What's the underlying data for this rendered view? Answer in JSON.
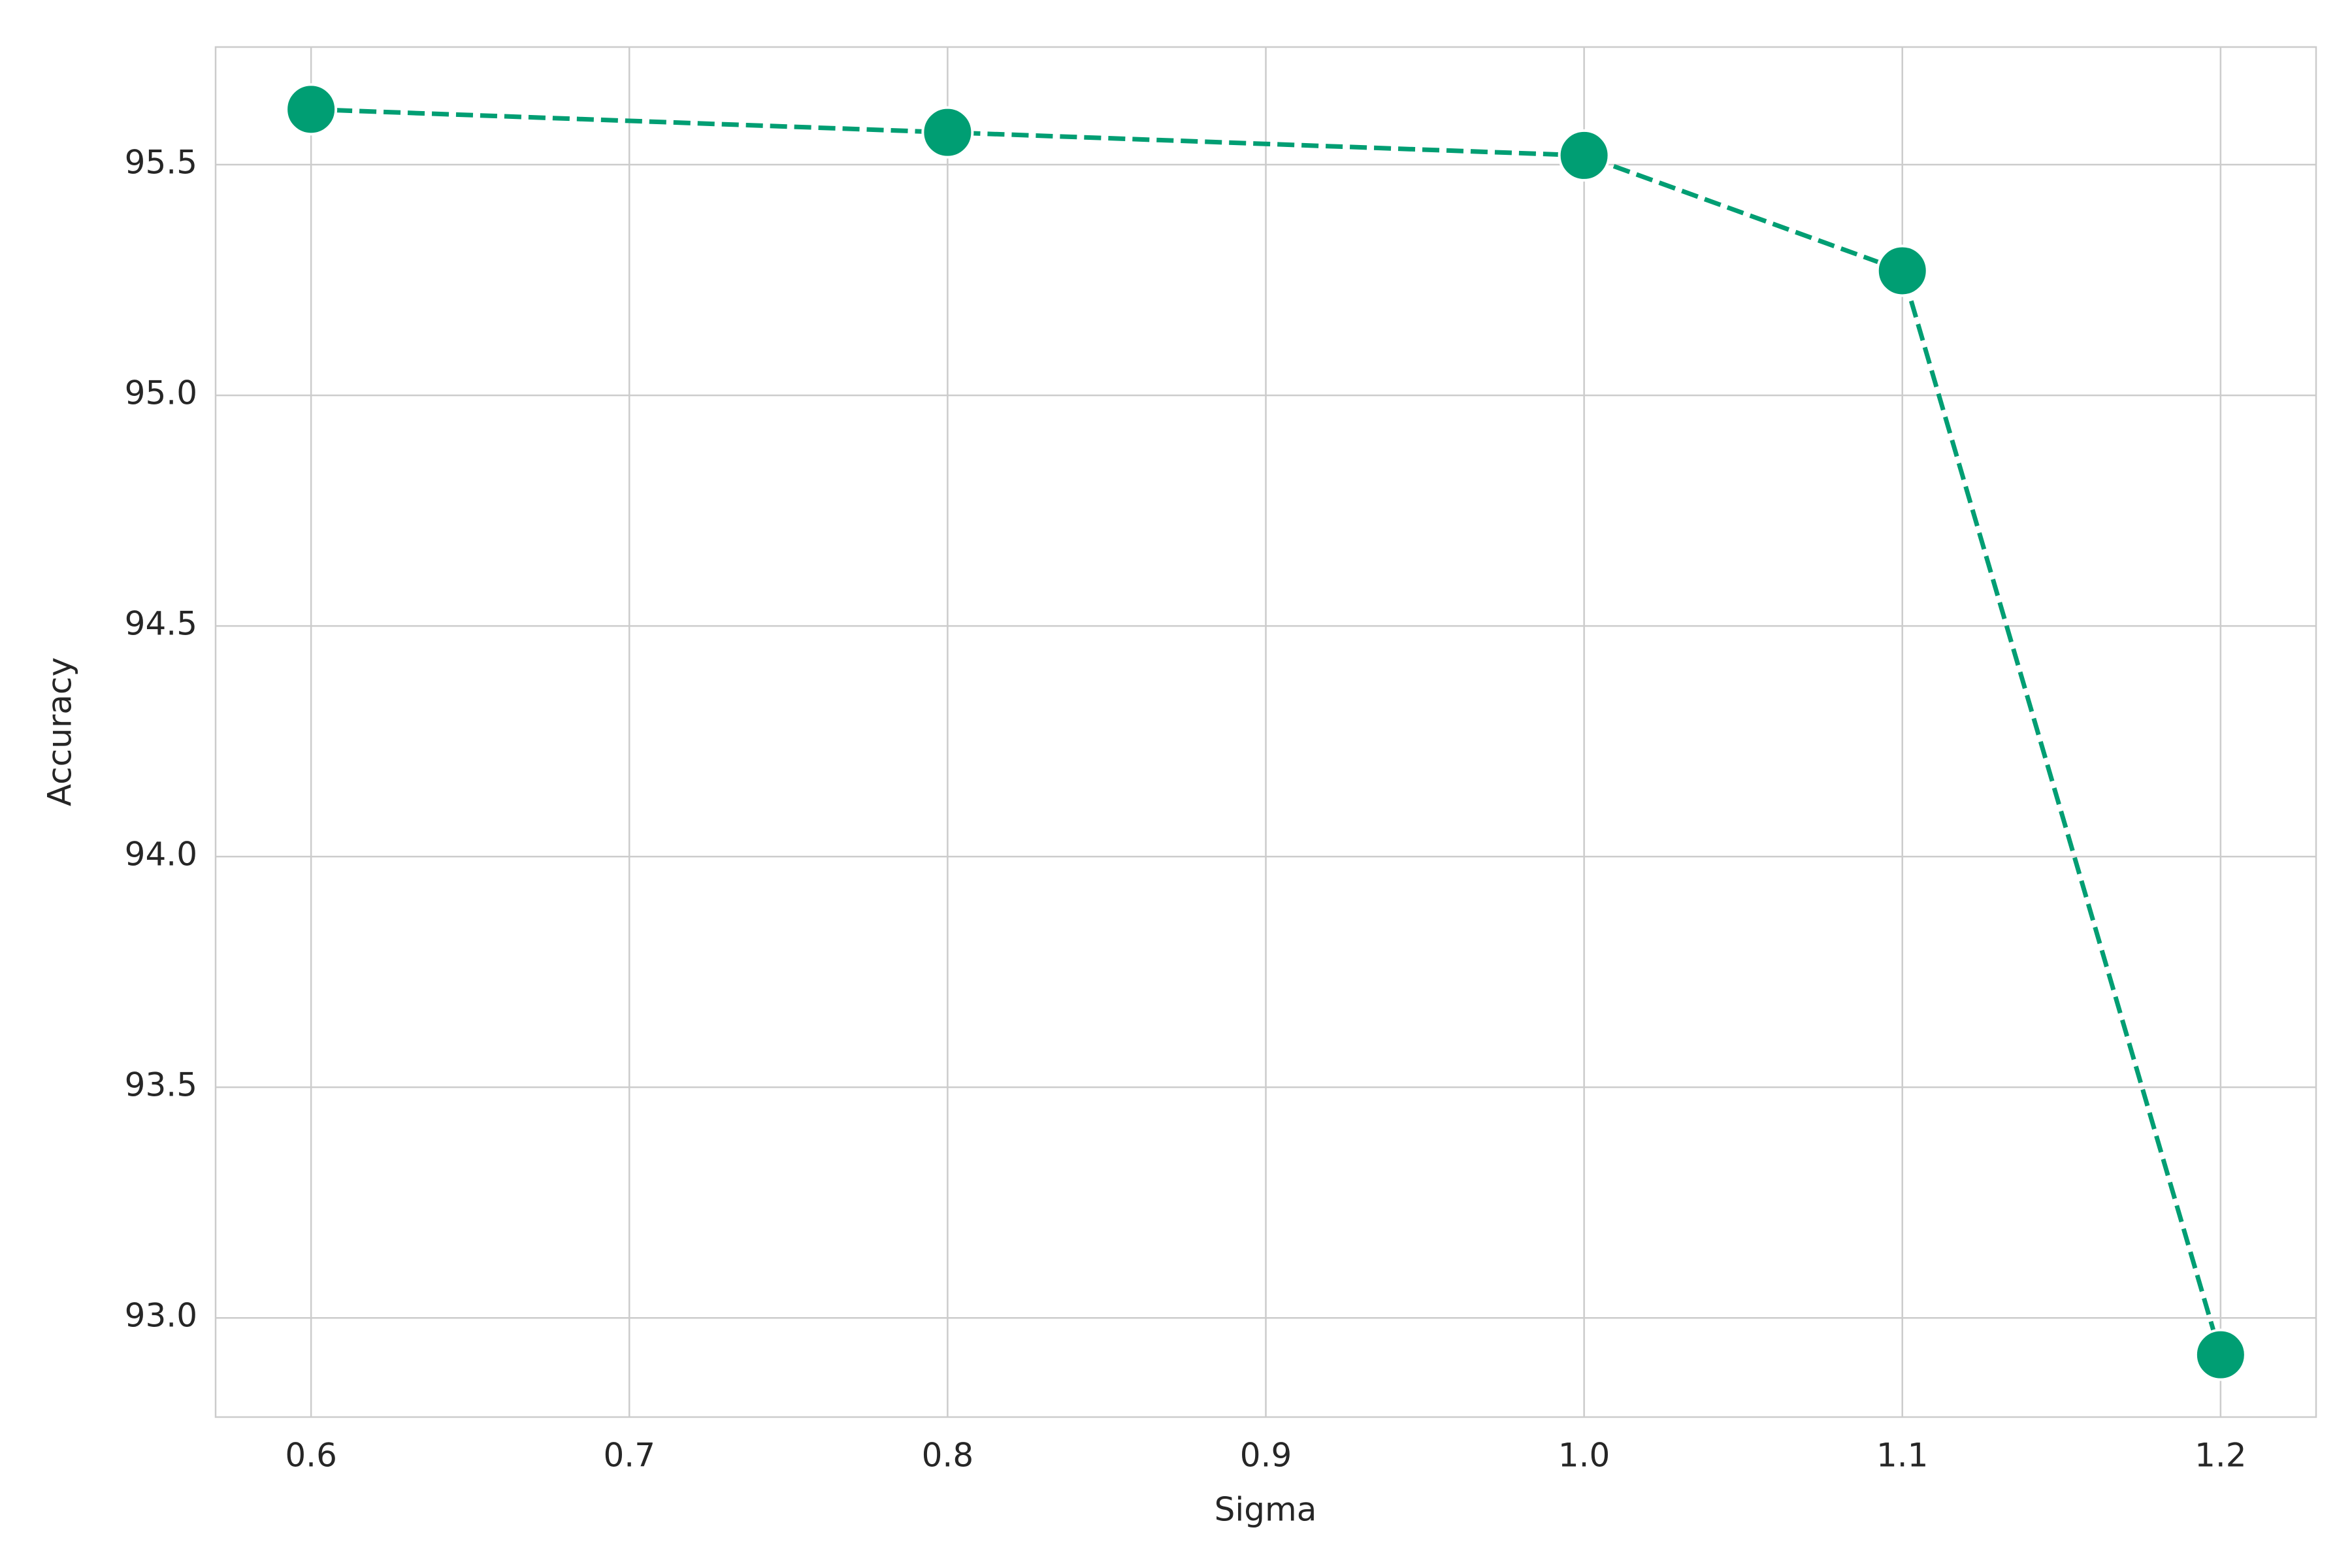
{
  "chart_data": {
    "type": "line",
    "x_label": "Sigma",
    "y_label": "Accuracy",
    "x": [
      0.6,
      0.8,
      1.0,
      1.1,
      1.2
    ],
    "series": [
      {
        "color": "#009e73",
        "values": [
          95.62,
          95.57,
          95.52,
          95.27,
          92.92
        ]
      }
    ],
    "xlim": [
      0.57,
      1.23
    ],
    "xticks": [
      0.6,
      0.7,
      0.8,
      0.9,
      {
        "value": 1.0,
        "label": "1.0"
      },
      1.1,
      1.2
    ],
    "ylim": [
      92.785,
      95.755
    ],
    "yticks": [
      {
        "value": 93.0,
        "label": "93.0"
      },
      93.5,
      {
        "value": 94.0,
        "label": "94.0"
      },
      94.5,
      {
        "value": 95.0,
        "label": "95.0"
      },
      95.5
    ],
    "grid": true,
    "line_style": "dashed",
    "marker": "circle"
  }
}
